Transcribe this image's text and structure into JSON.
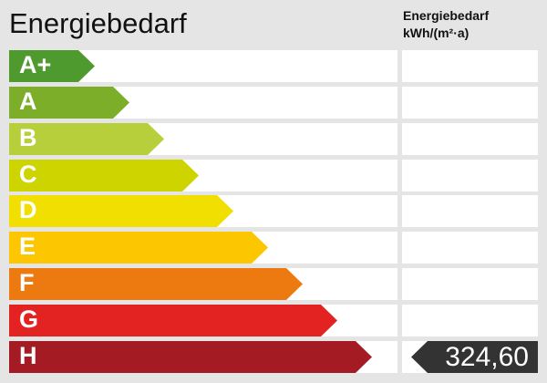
{
  "title": "Energiebedarf",
  "column_header": {
    "line1": "Energiebedarf",
    "line2": "kWh/(m²·a)"
  },
  "classes": [
    {
      "label": "A+",
      "color": "#4e9a2e"
    },
    {
      "label": "A",
      "color": "#7dae2a"
    },
    {
      "label": "B",
      "color": "#b6cf3b"
    },
    {
      "label": "C",
      "color": "#cdd400"
    },
    {
      "label": "D",
      "color": "#f0df00"
    },
    {
      "label": "E",
      "color": "#fcc600"
    },
    {
      "label": "F",
      "color": "#ec7a10"
    },
    {
      "label": "G",
      "color": "#e32322"
    },
    {
      "label": "H",
      "color": "#a51b23"
    }
  ],
  "current": {
    "class": "H",
    "value": "324,60",
    "color": "#333333"
  }
}
